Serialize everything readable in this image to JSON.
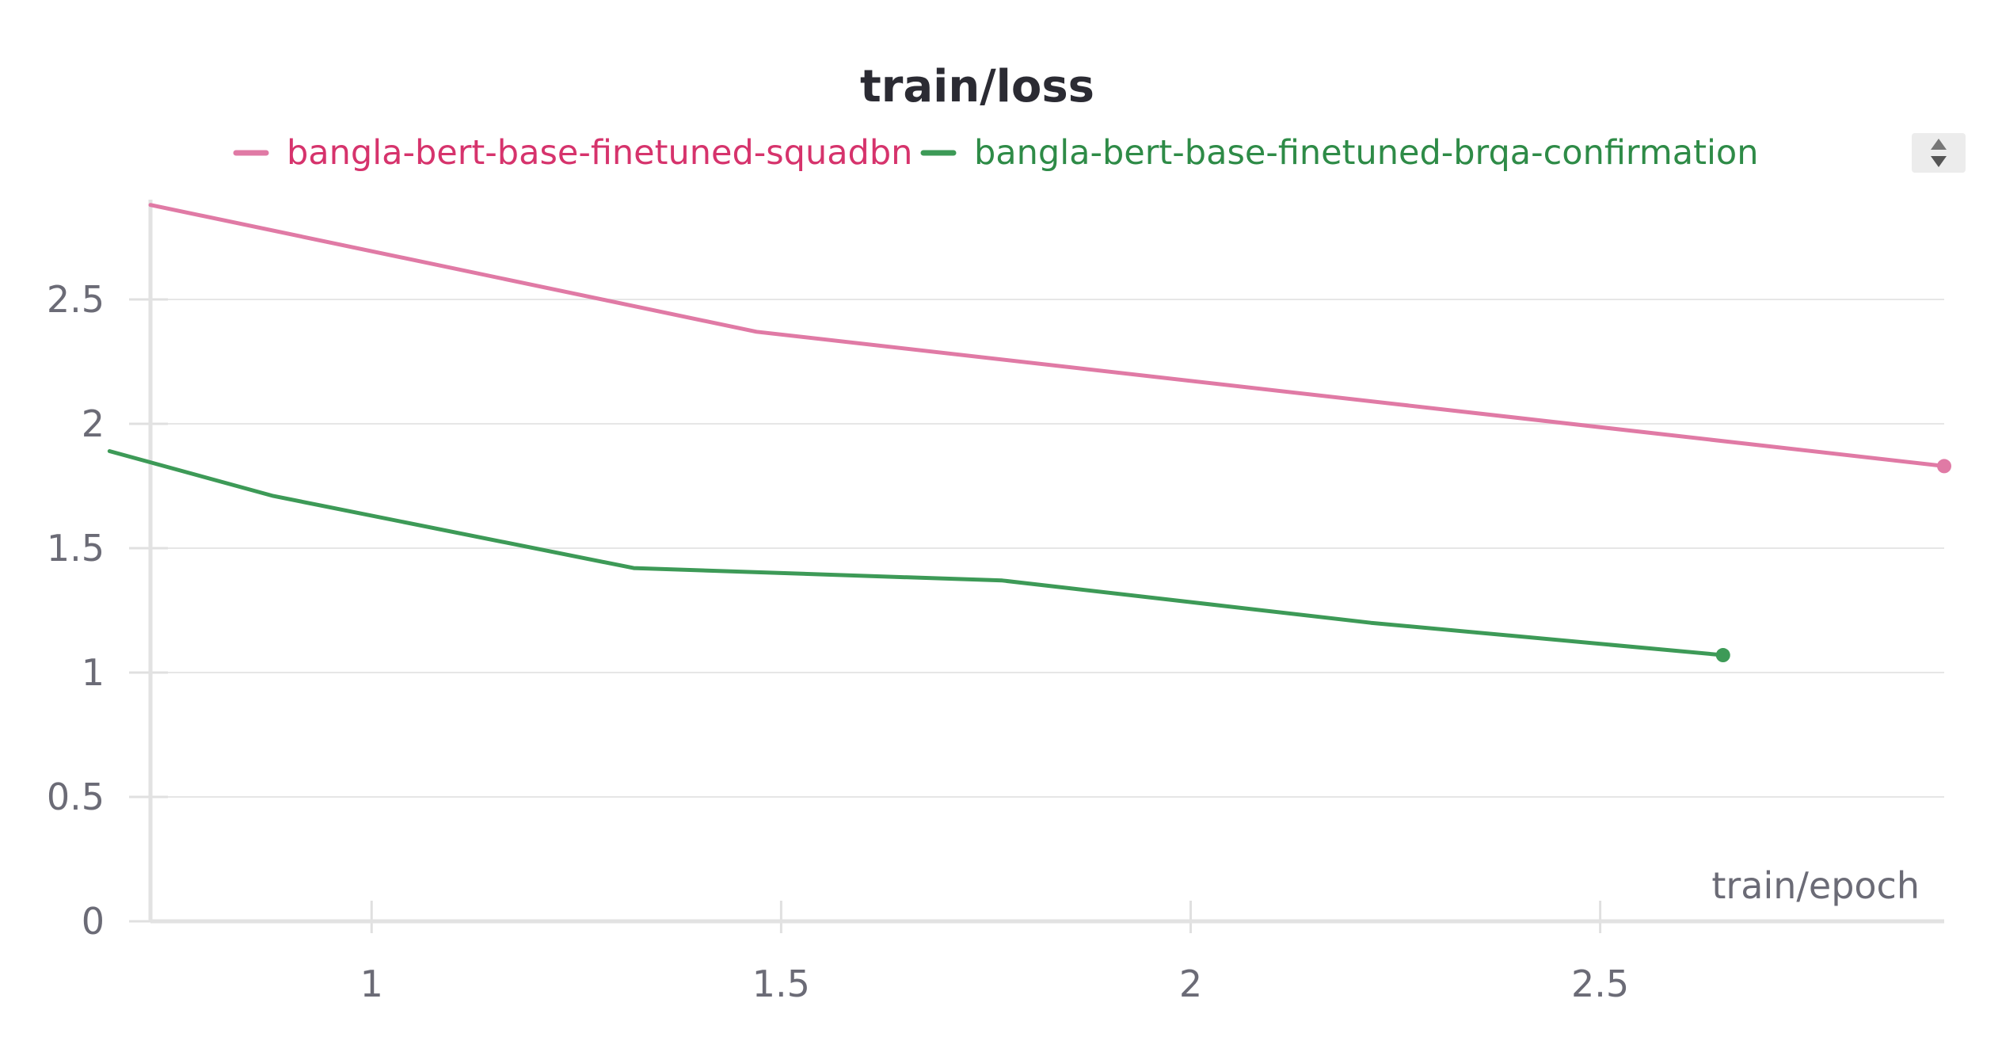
{
  "chart_data": {
    "type": "line",
    "title": "train/loss",
    "xlabel": "train/epoch",
    "ylabel": "",
    "xlim": [
      0.73,
      2.92
    ],
    "ylim": [
      0,
      2.9
    ],
    "xticks": [
      1,
      1.5,
      2,
      2.5
    ],
    "yticks": [
      0,
      0.5,
      1,
      1.5,
      2,
      2.5
    ],
    "xtick_labels": [
      "1",
      "1.5",
      "2",
      "2.5"
    ],
    "ytick_labels": [
      "0",
      "0.5",
      "1",
      "1.5",
      "2",
      "2.5"
    ],
    "grid": true,
    "legend": "top-center",
    "series": [
      {
        "name": "bangla-bert-base-finetuned-squadbn",
        "color": "#e07aa5",
        "legend_color": "#d6336c",
        "x": [
          0.73,
          1.47,
          2.92
        ],
        "y": [
          2.88,
          2.37,
          1.83
        ]
      },
      {
        "name": "bangla-bert-base-finetuned-brqa-confirmation",
        "color": "#3d9a57",
        "legend_color": "#2e8b47",
        "x": [
          0.68,
          0.88,
          1.32,
          1.77,
          2.22,
          2.65
        ],
        "y": [
          1.89,
          1.71,
          1.42,
          1.37,
          1.2,
          1.07
        ]
      }
    ]
  }
}
